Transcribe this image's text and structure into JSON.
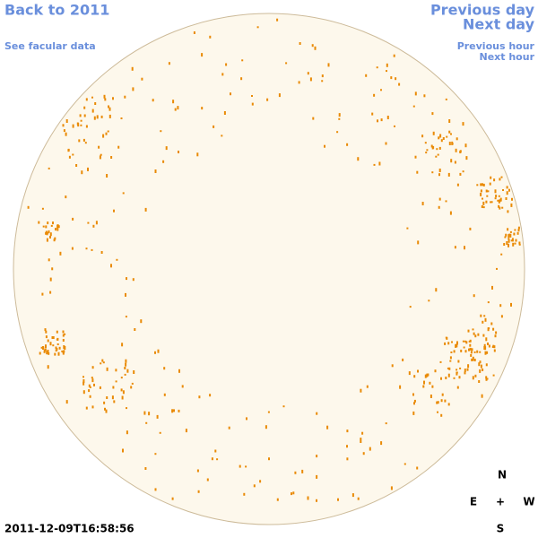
{
  "nav": {
    "back": "Back to 2011",
    "facular_data": "See facular data",
    "previous_day": "Previous day",
    "next_day": "Next day",
    "previous_hour": "Previous hour",
    "next_hour": "Next hour"
  },
  "timestamp": "2011-12-09T16:58:56",
  "compass": {
    "north": "N",
    "east": "E",
    "center": "+",
    "west": "W",
    "south": "S"
  }
}
